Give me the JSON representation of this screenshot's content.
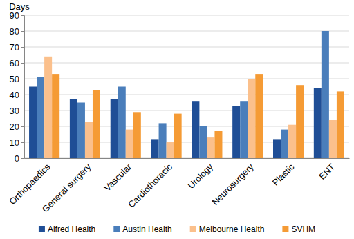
{
  "chart_data": {
    "type": "bar",
    "y_label": "Days",
    "categories": [
      "Orthopaedics",
      "General surgery",
      "Vascular",
      "Cardiothoracic",
      "Urology",
      "Neurosurgery",
      "Plastic",
      "ENT"
    ],
    "series": [
      {
        "name": "Alfred Health",
        "color": "#1f4e96",
        "values": [
          45,
          37,
          37,
          12,
          36,
          33,
          12,
          44
        ]
      },
      {
        "name": "Austin Health",
        "color": "#4a7ebb",
        "values": [
          51,
          35,
          45,
          22,
          20,
          36,
          18,
          80
        ]
      },
      {
        "name": "Melbourne Health",
        "color": "#fbc08c",
        "values": [
          64,
          23,
          18,
          10,
          13,
          50,
          21,
          24
        ]
      },
      {
        "name": "SVHM",
        "color": "#f59b35",
        "values": [
          53,
          43,
          29,
          28,
          17,
          53,
          46,
          42
        ]
      }
    ],
    "ylim": [
      0,
      90
    ],
    "yticks": [
      0,
      10,
      20,
      30,
      40,
      50,
      60,
      70,
      80,
      90
    ],
    "grid": true,
    "legend": "bottom"
  }
}
